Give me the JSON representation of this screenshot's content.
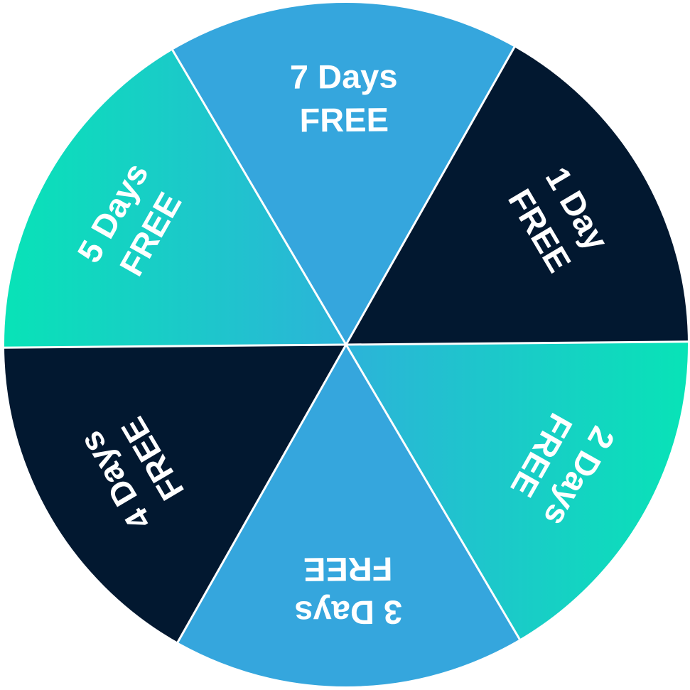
{
  "wheel": {
    "border_color": "#ffffff",
    "segments": [
      {
        "line1": "7 Days",
        "line2": "FREE",
        "fill": "#35a6dd"
      },
      {
        "line1": "1 Day",
        "line2": "FREE",
        "fill": "#021830"
      },
      {
        "line1": "2 Days",
        "line2": "FREE",
        "fill": "gradient-teal"
      },
      {
        "line1": "3 Days",
        "line2": "FREE",
        "fill": "#35a6dd"
      },
      {
        "line1": "4 Days",
        "line2": "FREE",
        "fill": "#021830"
      },
      {
        "line1": "5 Days",
        "line2": "FREE",
        "fill": "gradient-teal"
      }
    ],
    "colors": {
      "blue": "#35a6dd",
      "navy": "#021830",
      "teal": "#08e3b7",
      "teal_blue": "#2cb3d9"
    }
  }
}
